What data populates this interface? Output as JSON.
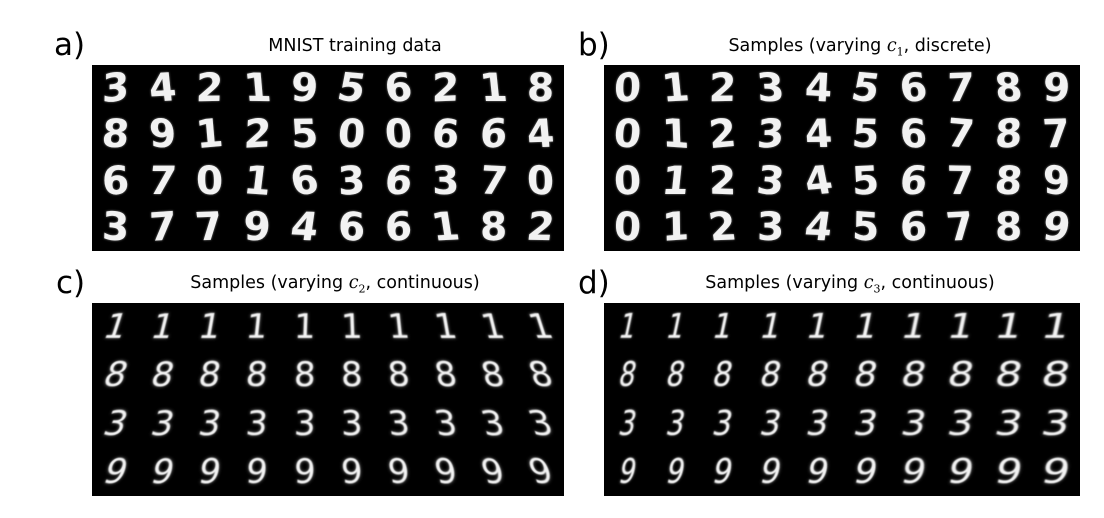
{
  "panels": [
    {
      "letter": "a)",
      "title": "MNIST training data",
      "title_var": "",
      "title_sub": "",
      "title_tail": "",
      "rows": [
        [
          "3",
          "4",
          "2",
          "1",
          "9",
          "5",
          "6",
          "2",
          "1",
          "8"
        ],
        [
          "8",
          "9",
          "1",
          "2",
          "5",
          "0",
          "0",
          "6",
          "6",
          "4"
        ],
        [
          "6",
          "7",
          "0",
          "1",
          "6",
          "3",
          "6",
          "3",
          "7",
          "0"
        ],
        [
          "3",
          "7",
          "7",
          "9",
          "4",
          "6",
          "6",
          "1",
          "8",
          "2"
        ]
      ]
    },
    {
      "letter": "b)",
      "title": "Samples (varying ",
      "title_var": "c",
      "title_sub": "1",
      "title_tail": ", discrete)",
      "rows": [
        [
          "0",
          "1",
          "2",
          "3",
          "4",
          "5",
          "6",
          "7",
          "8",
          "9"
        ],
        [
          "0",
          "1",
          "2",
          "3",
          "4",
          "5",
          "6",
          "7",
          "8",
          "7"
        ],
        [
          "0",
          "1",
          "2",
          "3",
          "4",
          "5",
          "6",
          "7",
          "8",
          "9"
        ],
        [
          "0",
          "1",
          "2",
          "3",
          "4",
          "5",
          "6",
          "7",
          "8",
          "9"
        ]
      ]
    },
    {
      "letter": "c)",
      "title": "Samples (varying ",
      "title_var": "c",
      "title_sub": "2",
      "title_tail": ", continuous)",
      "rows": [
        [
          "1",
          "1",
          "1",
          "1",
          "1",
          "1",
          "1",
          "1",
          "1",
          "1"
        ],
        [
          "8",
          "8",
          "8",
          "8",
          "8",
          "8",
          "8",
          "8",
          "8",
          "8"
        ],
        [
          "3",
          "3",
          "3",
          "3",
          "3",
          "3",
          "3",
          "3",
          "3",
          "3"
        ],
        [
          "9",
          "9",
          "9",
          "9",
          "9",
          "9",
          "9",
          "9",
          "9",
          "9"
        ]
      ]
    },
    {
      "letter": "d)",
      "title": "Samples (varying ",
      "title_var": "c",
      "title_sub": "3",
      "title_tail": ", continuous)",
      "rows": [
        [
          "1",
          "1",
          "1",
          "1",
          "1",
          "1",
          "1",
          "1",
          "1",
          "1"
        ],
        [
          "8",
          "8",
          "8",
          "8",
          "8",
          "8",
          "8",
          "8",
          "8",
          "8"
        ],
        [
          "3",
          "3",
          "3",
          "3",
          "3",
          "3",
          "3",
          "3",
          "3",
          "3"
        ],
        [
          "9",
          "9",
          "9",
          "9",
          "9",
          "9",
          "9",
          "9",
          "9",
          "9"
        ]
      ]
    }
  ]
}
